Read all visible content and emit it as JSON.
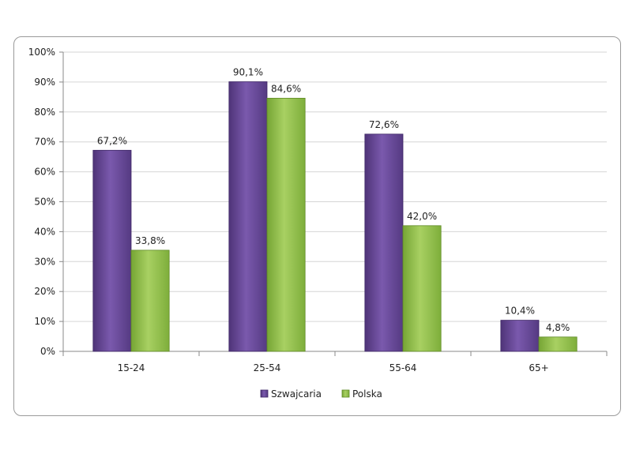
{
  "chart_data": {
    "type": "bar",
    "categories": [
      "15-24",
      "25-54",
      "55-64",
      "65+"
    ],
    "series": [
      {
        "name": "Szwajcaria",
        "color": "#6a4a9a",
        "values": [
          67.2,
          90.1,
          72.6,
          10.4
        ],
        "labels": [
          "67,2%",
          "90,1%",
          "72,6%",
          "10,4%"
        ]
      },
      {
        "name": "Polska",
        "color": "#8fbf47",
        "values": [
          33.8,
          84.6,
          42.0,
          4.8
        ],
        "labels": [
          "33,8%",
          "84,6%",
          "42,0%",
          "4,8%"
        ]
      }
    ],
    "yticks": [
      "0%",
      "10%",
      "20%",
      "30%",
      "40%",
      "50%",
      "60%",
      "70%",
      "80%",
      "90%",
      "100%"
    ],
    "ylim": [
      0,
      100
    ],
    "grid": true,
    "legend": "bottom"
  }
}
